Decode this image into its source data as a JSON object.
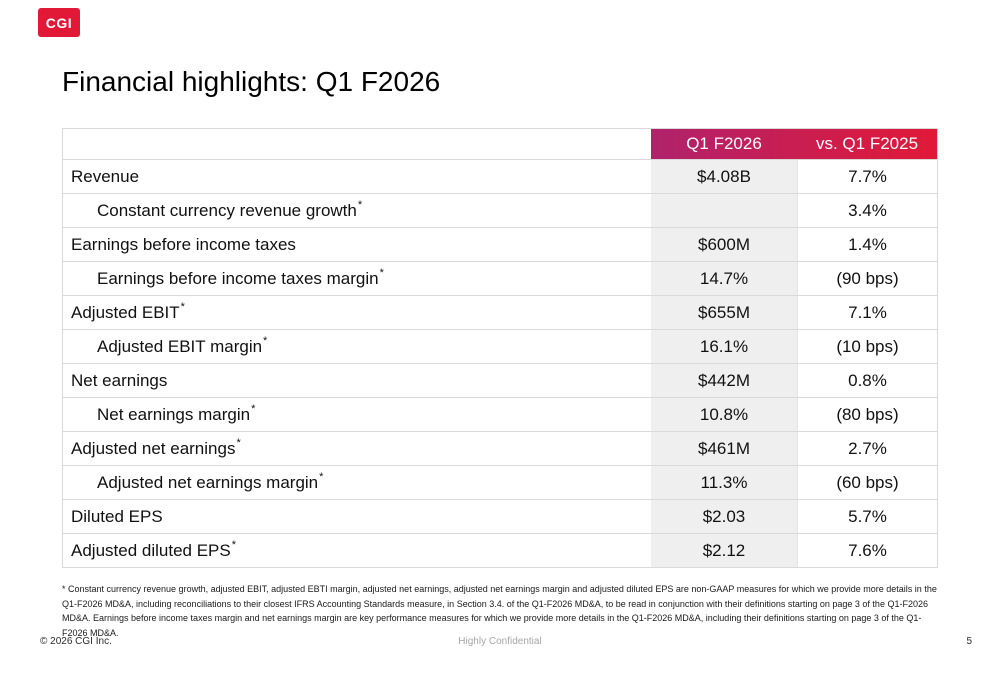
{
  "logo": {
    "text": "CGI"
  },
  "slide": {
    "title": "Financial highlights: Q1 F2026"
  },
  "table": {
    "columns": {
      "metric": "",
      "q1": "Q1 F2026",
      "vs": "vs. Q1 F2025"
    },
    "rows": [
      {
        "label": "Revenue",
        "sup": "",
        "q1": "$4.08B",
        "vs": "7.7%"
      },
      {
        "label": "Constant currency revenue growth",
        "sup": "*",
        "q1": "",
        "vs": "3.4%"
      },
      {
        "label": "Earnings before income taxes",
        "sup": "",
        "q1": "$600M",
        "vs": "1.4%"
      },
      {
        "label": "Earnings before income taxes margin",
        "sup": "*",
        "q1": "14.7%",
        "vs": "(90 bps)"
      },
      {
        "label": "Adjusted EBIT",
        "sup": "*",
        "q1": "$655M",
        "vs": "7.1%"
      },
      {
        "label": "Adjusted EBIT margin",
        "sup": "*",
        "q1": "16.1%",
        "vs": "(10 bps)"
      },
      {
        "label": "Net earnings",
        "sup": "",
        "q1": "$442M",
        "vs": "0.8%"
      },
      {
        "label": "Net earnings margin",
        "sup": "*",
        "q1": "10.8%",
        "vs": "(80 bps)"
      },
      {
        "label": "Adjusted net earnings",
        "sup": "*",
        "q1": "$461M",
        "vs": "2.7%"
      },
      {
        "label": "Adjusted net earnings margin",
        "sup": "*",
        "q1": "11.3%",
        "vs": "(60 bps)"
      },
      {
        "label": "Diluted EPS",
        "sup": "",
        "q1": "$2.03",
        "vs": "5.7%"
      },
      {
        "label": "Adjusted diluted EPS",
        "sup": "*",
        "q1": "$2.12",
        "vs": "7.6%"
      }
    ]
  },
  "footnote": "* Constant currency revenue growth, adjusted EBIT, adjusted EBTI margin, adjusted net earnings, adjusted net earnings margin and adjusted diluted EPS are non-GAAP measures for which we provide more details in the Q1-F2026 MD&A, including reconciliations to their closest IFRS Accounting Standards measure, in Section 3.4. of the Q1-F2026 MD&A, to be read in conjunction with their definitions starting on page 3 of the Q1-F2026 MD&A. Earnings before income taxes margin and net earnings margin are key performance measures for which we provide more details in the Q1-F2026 MD&A, including their definitions starting on page 3 of the Q1-F2026 MD&A.",
  "footer": {
    "copyright": "© 2026 CGI Inc.",
    "classification": "Highly Confidential",
    "page_number": "5"
  },
  "colors": {
    "header_gradient_start": "#5134a8",
    "header_gradient_end": "#e11937",
    "value_column_bg": "#efefef",
    "row_border": "#d9d9d9",
    "logo_red": "#e11937"
  }
}
